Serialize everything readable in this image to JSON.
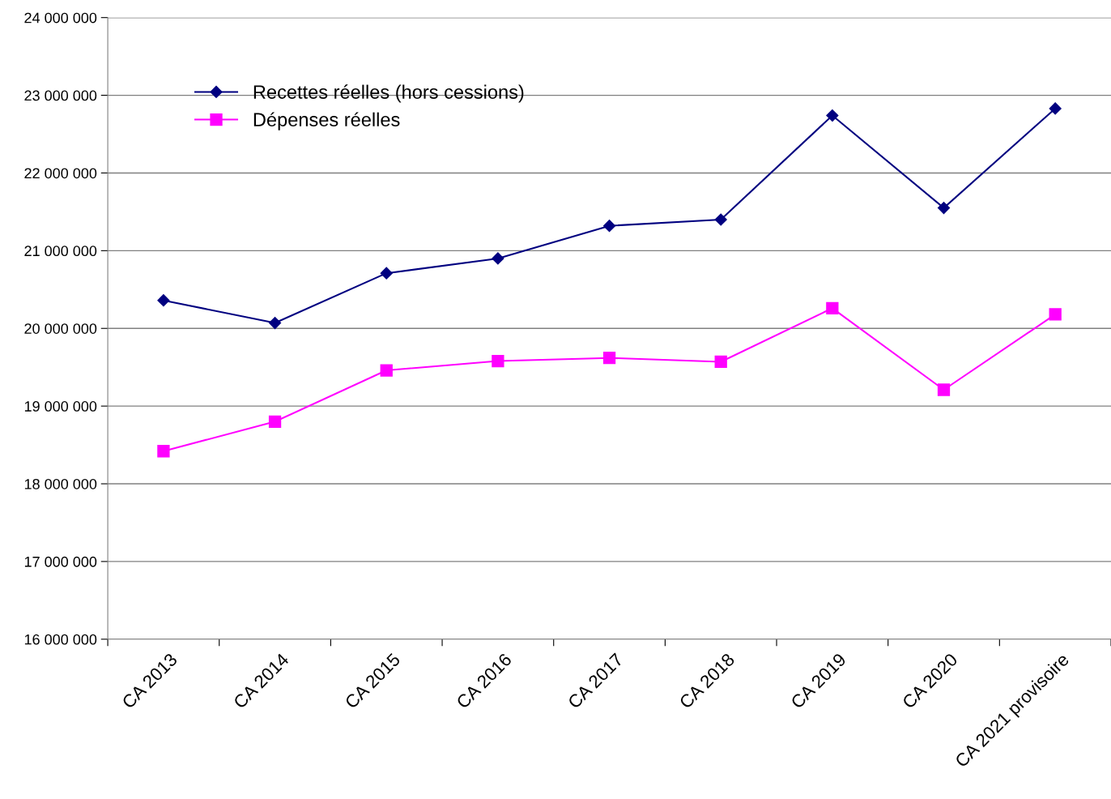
{
  "chart_data": {
    "type": "line",
    "categories": [
      "CA 2013",
      "CA 2014",
      "CA 2015",
      "CA 2016",
      "CA 2017",
      "CA 2018",
      "CA 2019",
      "CA 2020",
      "CA 2021 provisoire"
    ],
    "series": [
      {
        "name": "Recettes réelles (hors cessions)",
        "color": "#000080",
        "marker": "diamond",
        "values": [
          20360000,
          20070000,
          20710000,
          20900000,
          21320000,
          21400000,
          22740000,
          21550000,
          22830000
        ]
      },
      {
        "name": "Dépenses réelles",
        "color": "#ff00ff",
        "marker": "square",
        "values": [
          18420000,
          18800000,
          19460000,
          19580000,
          19620000,
          19570000,
          20260000,
          19210000,
          20180000
        ]
      }
    ],
    "ylim": [
      16000000,
      24000000
    ],
    "yticks": [
      {
        "value": 16000000,
        "label": "16 000 000"
      },
      {
        "value": 17000000,
        "label": "17 000 000"
      },
      {
        "value": 18000000,
        "label": "18 000 000"
      },
      {
        "value": 19000000,
        "label": "19 000 000"
      },
      {
        "value": 20000000,
        "label": "20 000 000"
      },
      {
        "value": 21000000,
        "label": "21 000 000"
      },
      {
        "value": 22000000,
        "label": "22 000 000"
      },
      {
        "value": 23000000,
        "label": "23 000 000"
      },
      {
        "value": 24000000,
        "label": "24 000 000"
      }
    ],
    "grid": "y",
    "legend": "top left",
    "line_style": "solid"
  }
}
